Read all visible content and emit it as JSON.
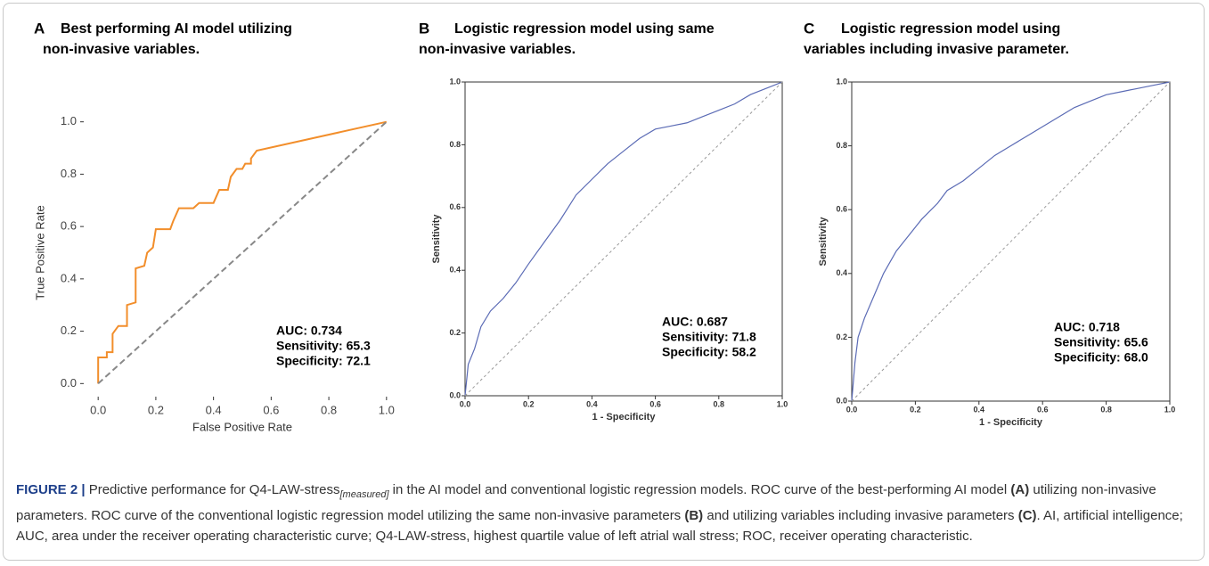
{
  "chart_data": [
    {
      "type": "line",
      "panel": "A",
      "title": [
        "Best performing AI model utilizing",
        "non-invasive variables."
      ],
      "xlabel": "False Positive Rate",
      "ylabel": "True Positive Rate",
      "frame": false,
      "xlim": [
        -0.05,
        1.05
      ],
      "ylim": [
        -0.05,
        1.05
      ],
      "xticks": [
        {
          "value": 0,
          "label": "0.0"
        },
        0.2,
        0.4,
        0.6,
        0.8,
        {
          "value": 1,
          "label": "1.0"
        }
      ],
      "yticks": [
        {
          "value": 0,
          "label": "0.0"
        },
        0.2,
        0.4,
        0.6,
        0.8,
        {
          "value": 1,
          "label": "1.0"
        }
      ],
      "series": [
        {
          "color": "#f28e2b",
          "dashed": false,
          "x": [
            0,
            0,
            0.03,
            0.03,
            0.05,
            0.05,
            0.07,
            0.1,
            0.1,
            0.13,
            0.13,
            0.16,
            0.17,
            0.19,
            0.2,
            0.25,
            0.26,
            0.28,
            0.33,
            0.35,
            0.4,
            0.42,
            0.45,
            0.46,
            0.48,
            0.5,
            0.51,
            0.53,
            0.53,
            0.55,
            1
          ],
          "values": [
            0,
            0.1,
            0.1,
            0.12,
            0.12,
            0.19,
            0.22,
            0.22,
            0.3,
            0.31,
            0.44,
            0.45,
            0.5,
            0.52,
            0.59,
            0.59,
            0.62,
            0.67,
            0.67,
            0.69,
            0.69,
            0.74,
            0.74,
            0.79,
            0.82,
            0.82,
            0.84,
            0.84,
            0.86,
            0.89,
            1
          ]
        },
        {
          "color": "#888888",
          "dashed": true,
          "x": [
            0,
            1
          ],
          "values": [
            0,
            1
          ]
        }
      ],
      "annotations": [
        "AUC: 0.734",
        "Sensitivity: 65.3",
        "Specificity: 72.1"
      ]
    },
    {
      "type": "line",
      "panel": "B",
      "title": [
        "Logistic regression model using same",
        "non-invasive variables."
      ],
      "xlabel": "1 - Specificity",
      "ylabel": "Sensitivity",
      "frame": true,
      "xlim": [
        0,
        1
      ],
      "ylim": [
        0,
        1
      ],
      "xticks": [
        {
          "value": 0,
          "label": "0.0"
        },
        0.2,
        0.4,
        0.6,
        0.8,
        {
          "value": 1,
          "label": "1.0"
        }
      ],
      "yticks": [
        {
          "value": 0,
          "label": "0.0"
        },
        0.2,
        0.4,
        0.6,
        0.8,
        {
          "value": 1,
          "label": "1.0"
        }
      ],
      "series": [
        {
          "color": "#5b6bb5",
          "dashed": false,
          "x": [
            0,
            0.01,
            0.03,
            0.05,
            0.08,
            0.12,
            0.16,
            0.2,
            0.25,
            0.3,
            0.35,
            0.4,
            0.45,
            0.5,
            0.55,
            0.6,
            0.65,
            0.7,
            0.75,
            0.8,
            0.85,
            0.9,
            0.95,
            1
          ],
          "values": [
            0,
            0.1,
            0.15,
            0.22,
            0.27,
            0.31,
            0.36,
            0.42,
            0.49,
            0.56,
            0.64,
            0.69,
            0.74,
            0.78,
            0.82,
            0.85,
            0.86,
            0.87,
            0.89,
            0.91,
            0.93,
            0.96,
            0.98,
            1
          ]
        },
        {
          "color": "#999999",
          "dashed": true,
          "x": [
            0,
            1
          ],
          "values": [
            0,
            1
          ]
        }
      ],
      "annotations": [
        "AUC: 0.687",
        "Sensitivity: 71.8",
        "Specificity: 58.2"
      ]
    },
    {
      "type": "line",
      "panel": "C",
      "title": [
        "Logistic regression model using",
        "variables including  invasive parameter."
      ],
      "xlabel": "1 - Specificity",
      "ylabel": "Sensitivity",
      "frame": true,
      "xlim": [
        0,
        1
      ],
      "ylim": [
        0,
        1
      ],
      "xticks": [
        {
          "value": 0,
          "label": "0.0"
        },
        0.2,
        0.4,
        0.6,
        0.8,
        {
          "value": 1,
          "label": "1.0"
        }
      ],
      "yticks": [
        {
          "value": 0,
          "label": "0.0"
        },
        0.2,
        0.4,
        0.6,
        0.8,
        {
          "value": 1,
          "label": "1.0"
        }
      ],
      "series": [
        {
          "color": "#5b6bb5",
          "dashed": false,
          "x": [
            0,
            0.01,
            0.02,
            0.04,
            0.07,
            0.1,
            0.14,
            0.18,
            0.22,
            0.27,
            0.3,
            0.35,
            0.4,
            0.45,
            0.5,
            0.55,
            0.6,
            0.65,
            0.7,
            0.75,
            0.8,
            0.85,
            0.9,
            0.95,
            1
          ],
          "values": [
            0,
            0.12,
            0.2,
            0.26,
            0.33,
            0.4,
            0.47,
            0.52,
            0.57,
            0.62,
            0.66,
            0.69,
            0.73,
            0.77,
            0.8,
            0.83,
            0.86,
            0.89,
            0.92,
            0.94,
            0.96,
            0.97,
            0.98,
            0.99,
            1
          ]
        },
        {
          "color": "#999999",
          "dashed": true,
          "x": [
            0,
            1
          ],
          "values": [
            0,
            1
          ]
        }
      ],
      "annotations": [
        "AUC: 0.718",
        "Sensitivity: 65.6",
        "Specificity: 68.0"
      ]
    }
  ],
  "caption": {
    "parts": [
      "FIGURE 2 |",
      " Predictive performance for Q4-LAW-stress",
      "[measured]",
      " in the AI model and conventional logistic regression models. ROC curve of the best-performing AI model ",
      "(A)",
      " utilizing non-invasive parameters. ROC curve of the conventional logistic regression model utilizing the same non-invasive parameters ",
      "(B)",
      " and utilizing variables including invasive parameters ",
      "(C)",
      ". AI, artificial intelligence; AUC, area under the receiver operating characteristic curve; Q4-LAW-stress, highest quartile value of left atrial wall stress; ROC, receiver operating characteristic."
    ]
  }
}
